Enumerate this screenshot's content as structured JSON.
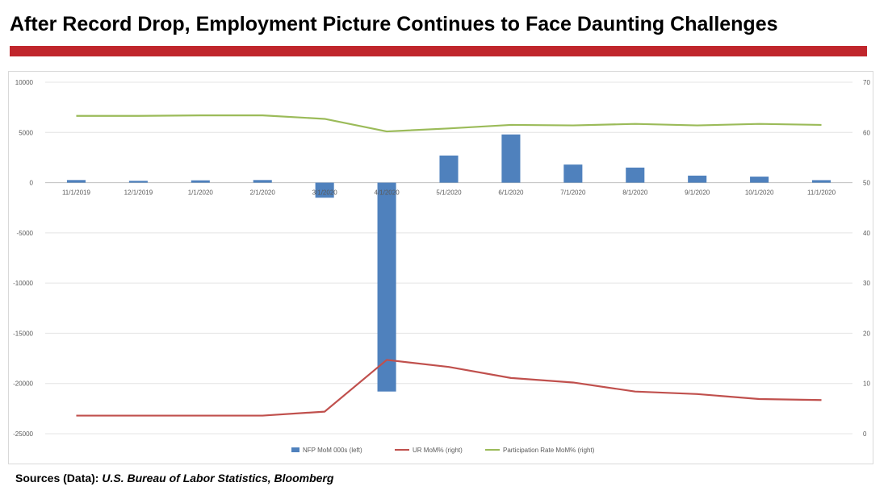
{
  "page": {
    "title": "After Record Drop, Employment Picture Continues to Face Daunting Challenges",
    "source_label": "Sources (Data):",
    "source_text": "U.S. Bureau of Labor Statistics, Bloomberg",
    "colors": {
      "accent_bar": "#c0262c",
      "title": "#000000"
    }
  },
  "chart_data": {
    "type": "bar",
    "title": "",
    "categories": [
      "11/1/2019",
      "12/1/2019",
      "1/1/2020",
      "2/1/2020",
      "3/1/2020",
      "4/1/2020",
      "5/1/2020",
      "6/1/2020",
      "7/1/2020",
      "8/1/2020",
      "9/1/2020",
      "10/1/2020",
      "11/1/2020"
    ],
    "y_left": {
      "ylim": [
        -25000,
        10000
      ],
      "ticks": [
        10000,
        5000,
        0,
        -5000,
        -10000,
        -15000,
        -20000,
        -25000
      ]
    },
    "y_right": {
      "ylim": [
        0,
        70
      ],
      "ticks": [
        70,
        60,
        50,
        40,
        30,
        20,
        10,
        0
      ]
    },
    "grid": true,
    "legend_position": "bottom",
    "series": [
      {
        "name": "NFP MoM 000s (left)",
        "type": "bar",
        "axis": "left",
        "color": "#4f81bd",
        "values": [
          260,
          180,
          230,
          260,
          -1500,
          -20800,
          2700,
          4800,
          1800,
          1500,
          700,
          600,
          250
        ]
      },
      {
        "name": "UR MoM% (right)",
        "type": "line",
        "axis": "right",
        "color": "#c0504d",
        "values": [
          3.6,
          3.6,
          3.6,
          3.6,
          4.4,
          14.7,
          13.3,
          11.1,
          10.2,
          8.4,
          7.9,
          6.9,
          6.7
        ]
      },
      {
        "name": "Participation Rate MoM% (right)",
        "type": "line",
        "axis": "right",
        "color": "#9bbb59",
        "values": [
          63.3,
          63.3,
          63.4,
          63.4,
          62.7,
          60.2,
          60.8,
          61.5,
          61.4,
          61.7,
          61.4,
          61.7,
          61.5
        ]
      }
    ]
  }
}
